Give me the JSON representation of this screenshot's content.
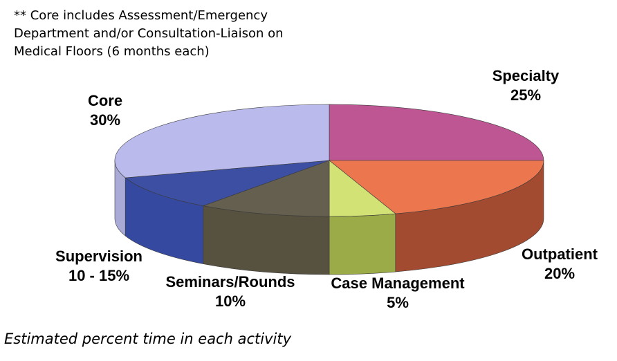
{
  "note": "** Core includes Assessment/Emergency Department and/or Consultation-Liaison on Medical Floors (6 months each)",
  "footer": "Estimated percent time in each activity",
  "chart_data": {
    "type": "pie",
    "style": "3d-tilted",
    "slices": [
      {
        "name": "Specialty",
        "value": 25,
        "display": "25%",
        "color": "#bf5694",
        "side_color": "#5e2a48"
      },
      {
        "name": "Outpatient",
        "value": 20,
        "display": "20%",
        "color": "#ec764e",
        "side_color": "#a24b30"
      },
      {
        "name": "Case Management",
        "value": 5,
        "display": "5%",
        "color": "#d2e274",
        "side_color": "#9bab48"
      },
      {
        "name": "Seminars/Rounds",
        "value": 10,
        "display": "10%",
        "color": "#655f4f",
        "side_color": "#57513f"
      },
      {
        "name": "Supervision",
        "value": 10,
        "display": "10 - 15%",
        "color": "#3c4fa3",
        "side_color": "#3549a0"
      },
      {
        "name": "Core",
        "value": 30,
        "display": "30%",
        "color": "#babbec",
        "side_color": "#a9aad6"
      }
    ],
    "legend": "none"
  }
}
